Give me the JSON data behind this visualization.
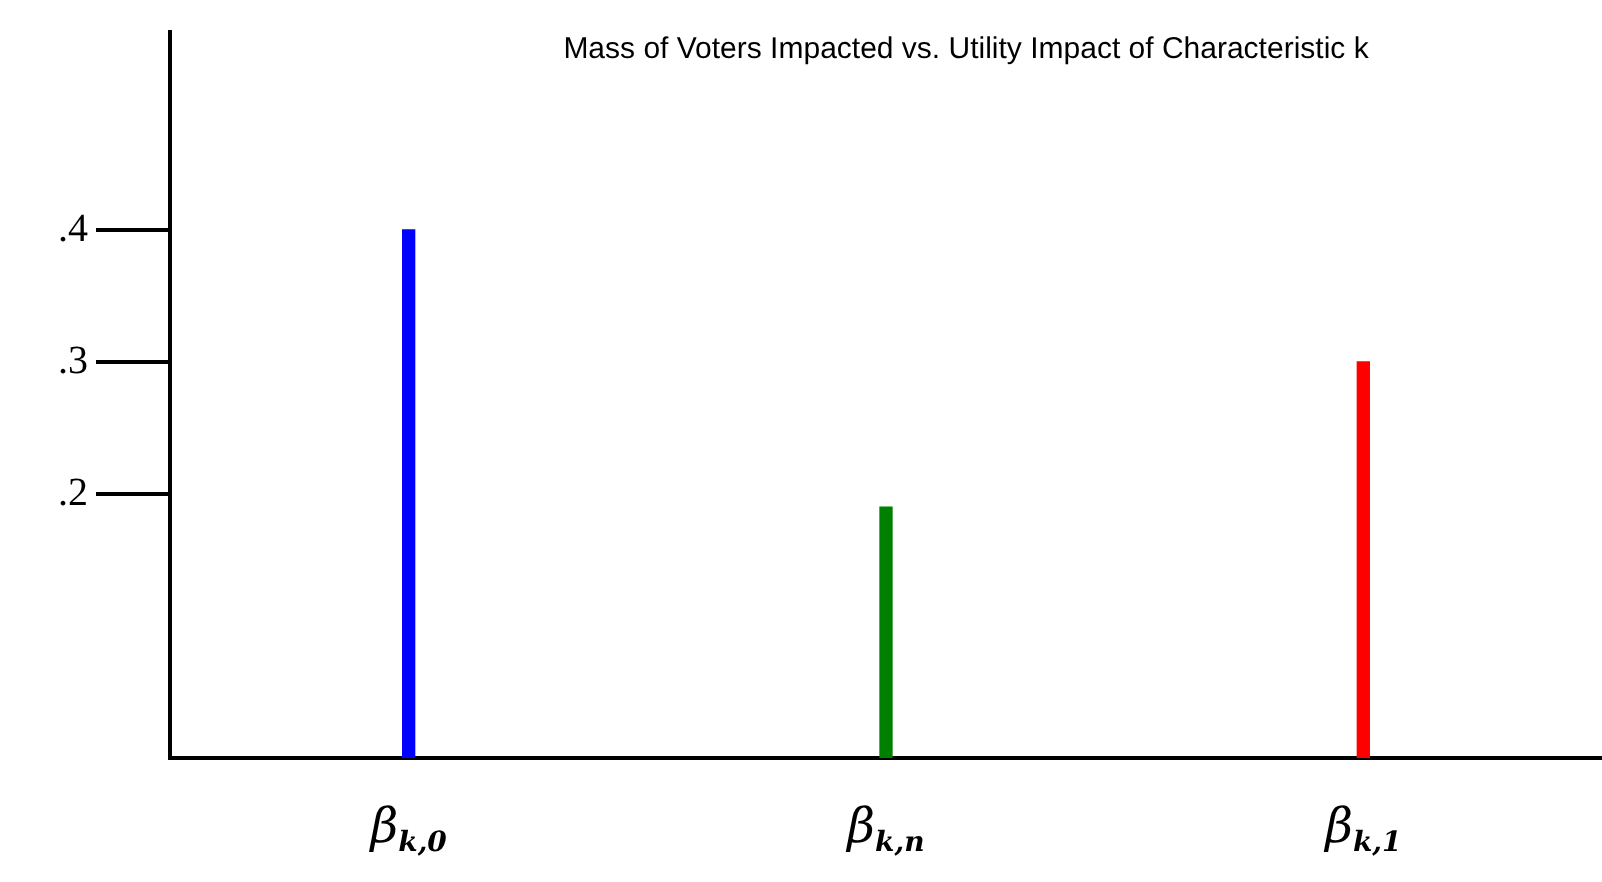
{
  "chart_data": {
    "type": "bar",
    "title": "Mass of Voters Impacted vs. Utility Impact of Characteristic k",
    "categories": [
      "β$_{k,0}$",
      "β$_{k,n}$",
      "β$_{k,1}$"
    ],
    "values": [
      0.4,
      0.19,
      0.3
    ],
    "colors": [
      "#0000ff",
      "#008000",
      "#ff0000"
    ],
    "ylim": [
      0,
      0.55
    ],
    "yticks": [
      {
        "value": 0.2,
        "label": ".2"
      },
      {
        "value": 0.3,
        "label": ".3"
      },
      {
        "value": 0.4,
        "label": ".4"
      }
    ],
    "grid": false,
    "legend": false
  }
}
